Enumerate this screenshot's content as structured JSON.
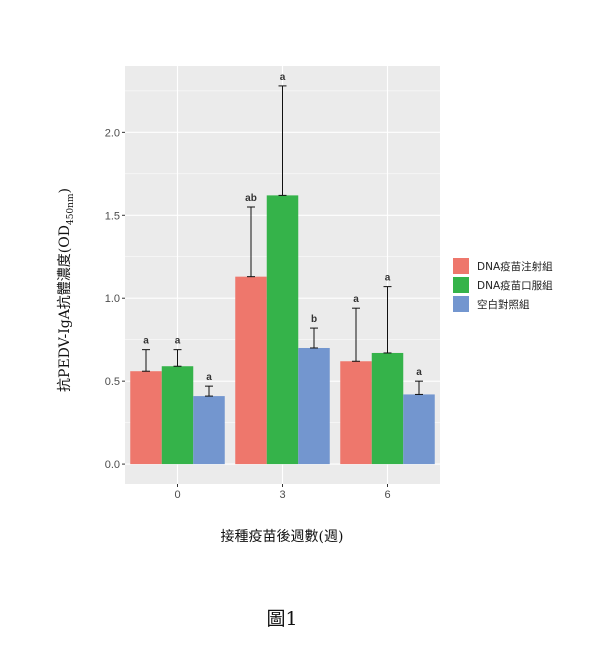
{
  "chart_data": {
    "type": "bar",
    "categories": [
      "0",
      "3",
      "6"
    ],
    "series": [
      {
        "name": "DNA疫苗注射組",
        "color": "#ee776c",
        "values": [
          0.56,
          1.13,
          0.62
        ],
        "errors": [
          0.13,
          0.42,
          0.32
        ],
        "letters": [
          "a",
          "ab",
          "a"
        ]
      },
      {
        "name": "DNA疫苗口服組",
        "color": "#35b34a",
        "values": [
          0.59,
          1.62,
          0.67
        ],
        "errors": [
          0.1,
          0.66,
          0.4
        ],
        "letters": [
          "a",
          "a",
          "a"
        ]
      },
      {
        "name": "空白對照組",
        "color": "#7396cf",
        "values": [
          0.41,
          0.7,
          0.42
        ],
        "errors": [
          0.06,
          0.12,
          0.08
        ],
        "letters": [
          "a",
          "b",
          "a"
        ]
      }
    ],
    "xlabel": "接種疫苗後週數(週)",
    "ylabel": "抗PEDV-IgA抗體濃度(OD450nm)",
    "ylabel_main": "抗PEDV-IgA抗體濃度(OD",
    "ylabel_sub": "450nm",
    "ylabel_end": ")",
    "ylim": [
      -0.12,
      2.4
    ],
    "yticks": [
      "0.0",
      "0.5",
      "1.0",
      "1.5",
      "2.0"
    ],
    "grid": true,
    "legend_position": "right"
  },
  "figure_caption": "圖1",
  "colors": {
    "panel_bg": "#ebebeb",
    "grid": "#ffffff"
  }
}
